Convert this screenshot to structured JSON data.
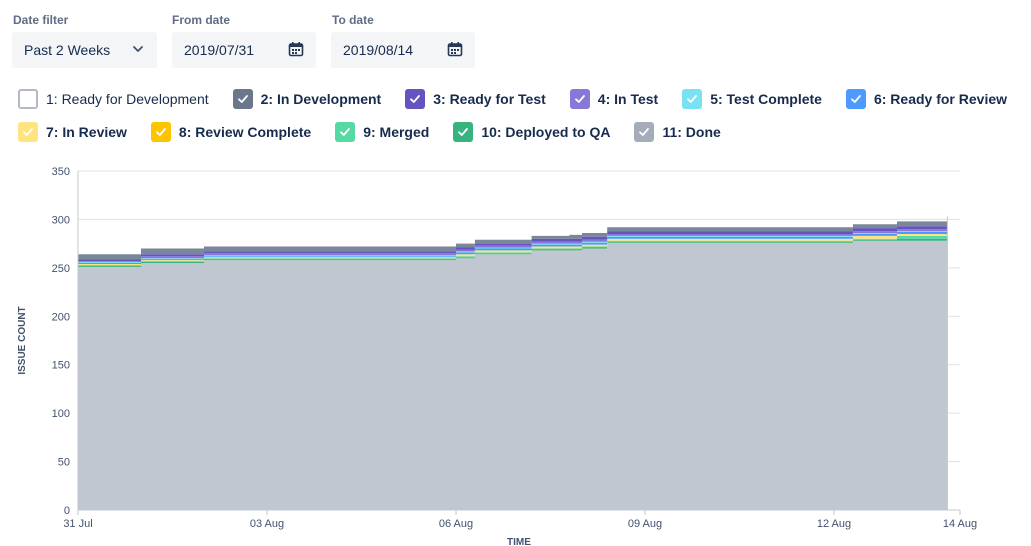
{
  "filters": {
    "date_filter": {
      "label": "Date filter",
      "value": "Past 2 Weeks"
    },
    "from_date": {
      "label": "From date",
      "value": "2019/07/31"
    },
    "to_date": {
      "label": "To date",
      "value": "2019/08/14"
    }
  },
  "legend": [
    {
      "label": "1: Ready for Development",
      "color": "#ffffff",
      "checked": false
    },
    {
      "label": "2: In Development",
      "color": "#6b778c",
      "checked": true
    },
    {
      "label": "3: Ready for Test",
      "color": "#6554c0",
      "checked": true
    },
    {
      "label": "4: In Test",
      "color": "#8777d9",
      "checked": true
    },
    {
      "label": "5: Test Complete",
      "color": "#79e2f2",
      "checked": true
    },
    {
      "label": "6: Ready for Review",
      "color": "#4c9aff",
      "checked": true
    },
    {
      "label": "7: In Review",
      "color": "#ffe380",
      "checked": true
    },
    {
      "label": "8: Review Complete",
      "color": "#ffc400",
      "checked": true
    },
    {
      "label": "9: Merged",
      "color": "#57d9a3",
      "checked": true
    },
    {
      "label": "10: Deployed to QA",
      "color": "#36b37e",
      "checked": true
    },
    {
      "label": "11: Done",
      "color": "#a5adba",
      "checked": true
    }
  ],
  "chart_data": {
    "type": "area",
    "stacked": true,
    "xlabel": "TIME",
    "ylabel": "ISSUE COUNT",
    "ylim": [
      0,
      350
    ],
    "yticks": [
      0,
      50,
      100,
      150,
      200,
      250,
      300,
      350
    ],
    "xlim": [
      0,
      14
    ],
    "xticks": [
      {
        "x": 0,
        "label": "31 Jul"
      },
      {
        "x": 3,
        "label": "03 Aug"
      },
      {
        "x": 6,
        "label": "06 Aug"
      },
      {
        "x": 9,
        "label": "09 Aug"
      },
      {
        "x": 12,
        "label": "12 Aug"
      },
      {
        "x": 14,
        "label": "14 Aug"
      }
    ],
    "grid": true,
    "x": [
      0,
      0.8,
      1.0,
      2.0,
      5.0,
      6.0,
      6.3,
      7.2,
      7.8,
      8.0,
      8.4,
      9.0,
      12.0,
      12.3,
      13.0,
      13.8
    ],
    "series": [
      {
        "name": "11: Done",
        "color": "#c1c7d0",
        "values": [
          251,
          251,
          255,
          258,
          258,
          260,
          264,
          268,
          268,
          270,
          276,
          276,
          276,
          278,
          278,
          286
        ]
      },
      {
        "name": "10: Deployed to QA",
        "color": "#36b37e",
        "values": [
          1,
          1,
          1,
          1,
          1,
          1,
          1,
          1,
          1,
          1,
          1,
          1,
          1,
          1,
          2,
          1
        ]
      },
      {
        "name": "9: Merged",
        "color": "#57d9a3",
        "values": [
          1,
          1,
          1,
          1,
          1,
          1,
          1,
          1,
          1,
          1,
          1,
          1,
          1,
          1,
          3,
          1
        ]
      },
      {
        "name": "8: Review Complete",
        "color": "#ffc400",
        "values": [
          0,
          0,
          0,
          0,
          0,
          0,
          0,
          0,
          0,
          0,
          0,
          0,
          0,
          0,
          0,
          0
        ]
      },
      {
        "name": "7: In Review",
        "color": "#ffe380",
        "values": [
          1,
          1,
          1,
          1,
          1,
          2,
          2,
          2,
          2,
          2,
          2,
          2,
          2,
          3,
          2,
          2
        ]
      },
      {
        "name": "6: Ready for Review",
        "color": "#4c9aff",
        "values": [
          1,
          1,
          1,
          1,
          1,
          2,
          2,
          2,
          2,
          2,
          2,
          2,
          2,
          2,
          2,
          2
        ]
      },
      {
        "name": "5: Test Complete",
        "color": "#79e2f2",
        "values": [
          1,
          1,
          1,
          1,
          1,
          1,
          1,
          1,
          1,
          1,
          1,
          1,
          1,
          1,
          1,
          1
        ]
      },
      {
        "name": "4: In Test",
        "color": "#8777d9",
        "values": [
          1,
          1,
          2,
          2,
          2,
          2,
          2,
          2,
          2,
          2,
          2,
          2,
          2,
          2,
          2,
          2
        ]
      },
      {
        "name": "3: Ready for Test",
        "color": "#6554c0",
        "values": [
          2,
          2,
          2,
          2,
          2,
          2,
          2,
          3,
          3,
          3,
          3,
          3,
          3,
          3,
          3,
          3
        ]
      },
      {
        "name": "2: In Development",
        "color": "#7a869a",
        "values": [
          5,
          5,
          6,
          5,
          5,
          4,
          4,
          3,
          4,
          4,
          4,
          4,
          4,
          4,
          5,
          5
        ]
      }
    ]
  }
}
